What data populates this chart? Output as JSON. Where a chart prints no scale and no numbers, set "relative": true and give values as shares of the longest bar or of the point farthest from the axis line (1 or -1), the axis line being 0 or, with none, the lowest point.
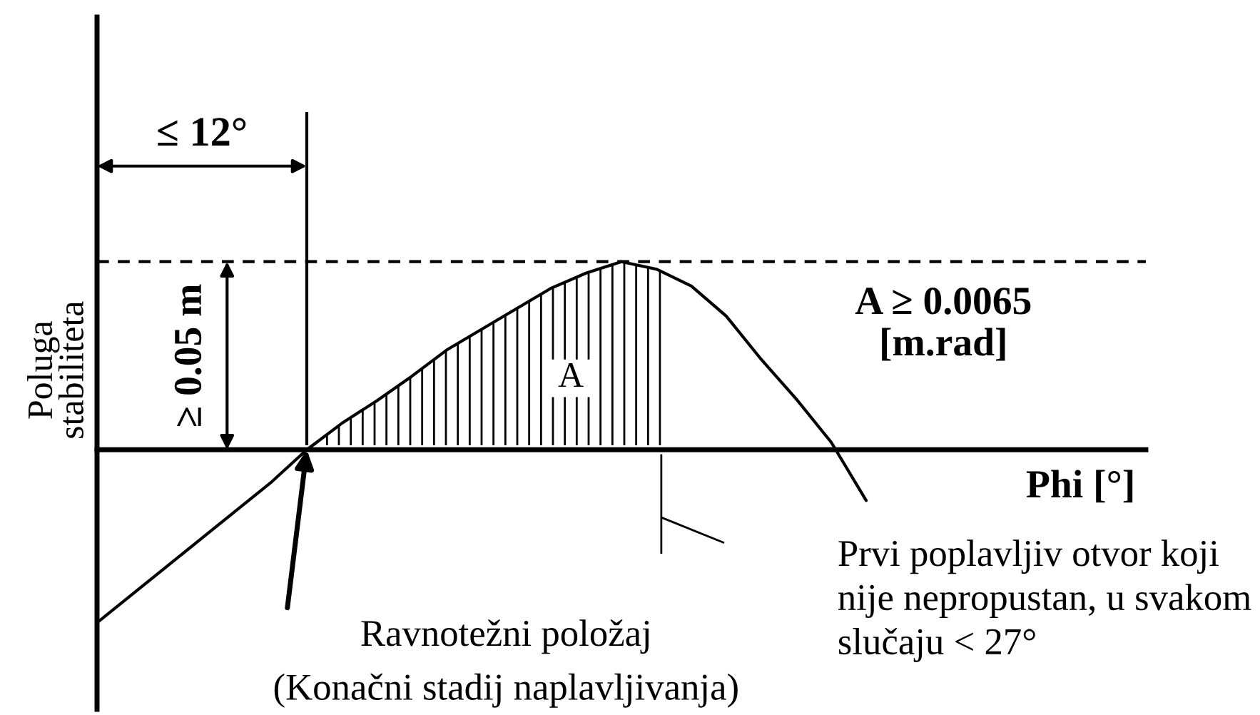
{
  "chart_data": {
    "type": "line",
    "relative": true,
    "categories": [
      null,
      null,
      null,
      null,
      null,
      null,
      null,
      null,
      null,
      null,
      null,
      null,
      null,
      null,
      null,
      null,
      null,
      null,
      null,
      null,
      null,
      null,
      null,
      null,
      null,
      null,
      null,
      null,
      null,
      null,
      null
    ],
    "series": [
      {
        "color": "#000000",
        "values": [
          -0.92,
          -0.77,
          -0.62,
          -0.47,
          -0.32,
          -0.17,
          0,
          0.14,
          0.26,
          0.39,
          0.53,
          0.64,
          0.75,
          0.86,
          0.94,
          1,
          0.96,
          0.87,
          0.71,
          0.48,
          0.27,
          0.04,
          -0.27,
          null,
          null,
          null,
          null,
          null,
          null,
          null,
          null
        ]
      }
    ],
    "xlabel": "Phi [°]",
    "ylabel": "Poluga\nstabiliteta",
    "ref_lines": [
      {
        "axis": "y",
        "value": 1,
        "line_style": "dashed",
        "label": "≥ 0.05 m"
      }
    ],
    "annotations": [
      "≤ 12°",
      "A",
      "A ≥ 0.0065\n[m.rad]",
      "Ravnotežni položaj\n(Konačni stadij naplavljivanja)",
      "Prvi poplavljiv otvor koji\nnije nepropustan, u svakom\nslučaju < 27°"
    ]
  }
}
